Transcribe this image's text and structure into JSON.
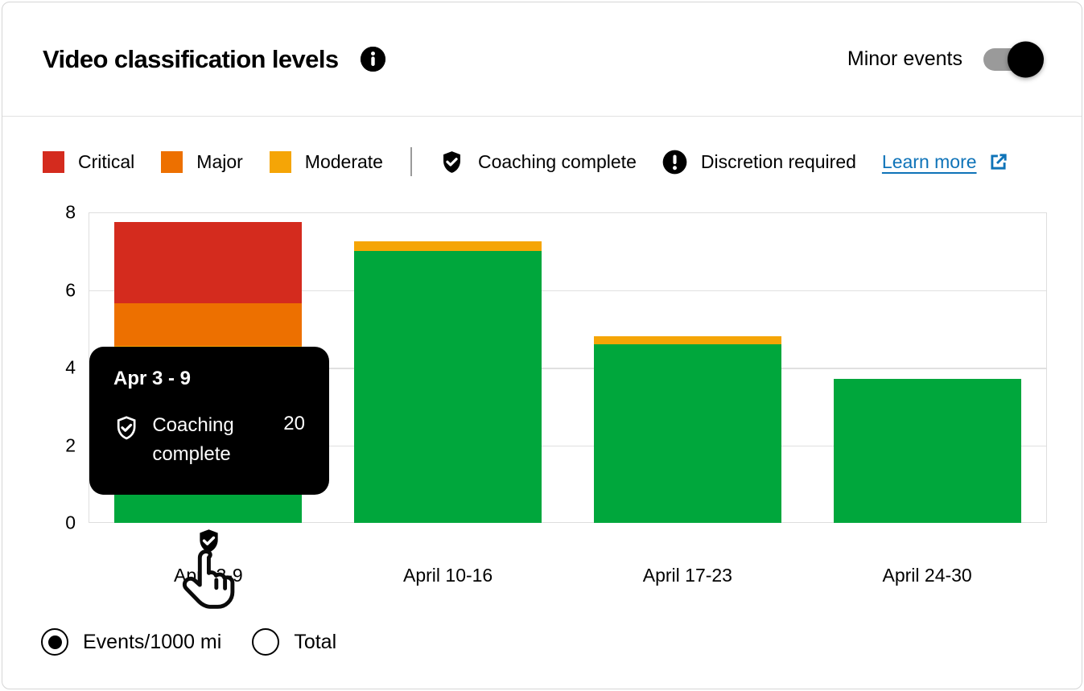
{
  "header": {
    "title": "Video classification levels",
    "info_icon": "info-icon",
    "minor_events_label": "Minor events",
    "minor_events_toggle_on": true
  },
  "legend": {
    "severities": [
      {
        "label": "Critical",
        "color": "#d42b1e"
      },
      {
        "label": "Major",
        "color": "#ed7000"
      },
      {
        "label": "Moderate",
        "color": "#f5a506"
      }
    ],
    "markers": [
      {
        "icon": "shield-check-icon",
        "label": "Coaching complete"
      },
      {
        "icon": "exclamation-circle-icon",
        "label": "Discretion required"
      }
    ],
    "learn_more_label": "Learn more",
    "link_color": "#0e73b8"
  },
  "chart_data": {
    "type": "bar",
    "stacked": true,
    "categories": [
      "April 3-9",
      "April 10-16",
      "April 17-23",
      "April 24-30"
    ],
    "series": [
      {
        "name": "Minor (green)",
        "color": "#00a73c",
        "values": [
          3.55,
          7.0,
          4.6,
          3.7
        ]
      },
      {
        "name": "Moderate",
        "color": "#f5a506",
        "values": [
          1.0,
          0.25,
          0.2,
          0
        ]
      },
      {
        "name": "Major",
        "color": "#ed7000",
        "values": [
          1.1,
          0,
          0,
          0
        ]
      },
      {
        "name": "Critical",
        "color": "#d42b1e",
        "values": [
          2.1,
          0,
          0,
          0
        ]
      }
    ],
    "totals": [
      7.75,
      7.25,
      4.8,
      3.7
    ],
    "ylim": [
      0,
      8
    ],
    "yticks": [
      0,
      2,
      4,
      6,
      8
    ],
    "grid": true,
    "legend_position": "top",
    "annotations": {
      "coaching_badge_on": "April 3-9"
    }
  },
  "tooltip": {
    "title": "Apr 3 - 9",
    "rows": [
      {
        "icon": "shield-check-icon",
        "label": "Coaching complete",
        "value": "20"
      }
    ]
  },
  "footer": {
    "options": [
      {
        "label": "Events/1000 mi",
        "selected": true
      },
      {
        "label": "Total",
        "selected": false
      }
    ]
  }
}
